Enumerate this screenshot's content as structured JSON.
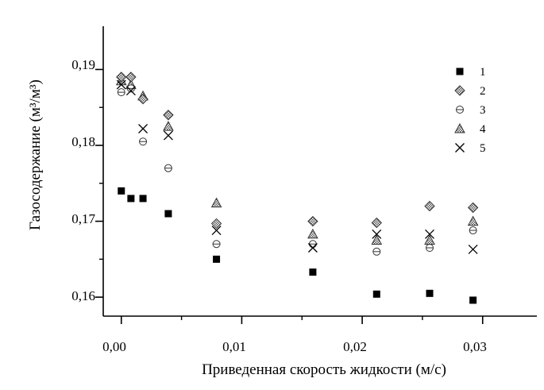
{
  "chart_data": {
    "type": "scatter",
    "xlabel": "Приведенная скорость жидкости (м/с)",
    "ylabel": "Газосодержание (м³/м³)",
    "xlim": [
      -0.0015,
      0.0345
    ],
    "ylim": [
      0.1575,
      0.1957
    ],
    "x_ticks": [
      "0,00",
      "0,01",
      "0,02",
      "0,03"
    ],
    "x_tick_values": [
      0.0,
      0.01,
      0.02,
      0.03
    ],
    "y_ticks": [
      "0,16",
      "0,17",
      "0,18",
      "0,19"
    ],
    "y_tick_values": [
      0.16,
      0.17,
      0.18,
      0.19
    ],
    "legend_position": "top-right",
    "series": [
      {
        "name": "1",
        "marker": "filled-square",
        "points": [
          [
            0.0,
            0.174
          ],
          [
            0.0008,
            0.173
          ],
          [
            0.0018,
            0.173
          ],
          [
            0.0039,
            0.171
          ],
          [
            0.0079,
            0.165
          ],
          [
            0.0159,
            0.1633
          ],
          [
            0.0212,
            0.1604
          ],
          [
            0.0256,
            0.1605
          ],
          [
            0.0292,
            0.1596
          ]
        ]
      },
      {
        "name": "2",
        "marker": "hatched-diamond",
        "points": [
          [
            0.0,
            0.189
          ],
          [
            0.0008,
            0.189
          ],
          [
            0.0018,
            0.1861
          ],
          [
            0.0039,
            0.184
          ],
          [
            0.0079,
            0.1697
          ],
          [
            0.0159,
            0.17
          ],
          [
            0.0212,
            0.1698
          ],
          [
            0.0256,
            0.172
          ],
          [
            0.0292,
            0.1718
          ]
        ]
      },
      {
        "name": "3",
        "marker": "barred-circle",
        "points": [
          [
            0.0,
            0.187
          ],
          [
            0.0008,
            0.1875
          ],
          [
            0.0018,
            0.1805
          ],
          [
            0.0039,
            0.177
          ],
          [
            0.0079,
            0.167
          ],
          [
            0.0159,
            0.167
          ],
          [
            0.0212,
            0.166
          ],
          [
            0.0256,
            0.1665
          ],
          [
            0.0292,
            0.1688
          ]
        ]
      },
      {
        "name": "4",
        "marker": "hatched-triangle",
        "points": [
          [
            0.0,
            0.1885
          ],
          [
            0.0008,
            0.188
          ],
          [
            0.0018,
            0.1865
          ],
          [
            0.0039,
            0.1825
          ],
          [
            0.0079,
            0.1724
          ],
          [
            0.0159,
            0.1683
          ],
          [
            0.0212,
            0.1675
          ],
          [
            0.0256,
            0.1675
          ],
          [
            0.0292,
            0.17
          ]
        ]
      },
      {
        "name": "5",
        "marker": "x-cross",
        "points": [
          [
            0.0,
            0.188
          ],
          [
            0.0008,
            0.1872
          ],
          [
            0.0018,
            0.1822
          ],
          [
            0.0039,
            0.1813
          ],
          [
            0.0079,
            0.1688
          ],
          [
            0.0159,
            0.1665
          ],
          [
            0.0212,
            0.1683
          ],
          [
            0.0256,
            0.1683
          ],
          [
            0.0292,
            0.1663
          ]
        ]
      }
    ]
  }
}
